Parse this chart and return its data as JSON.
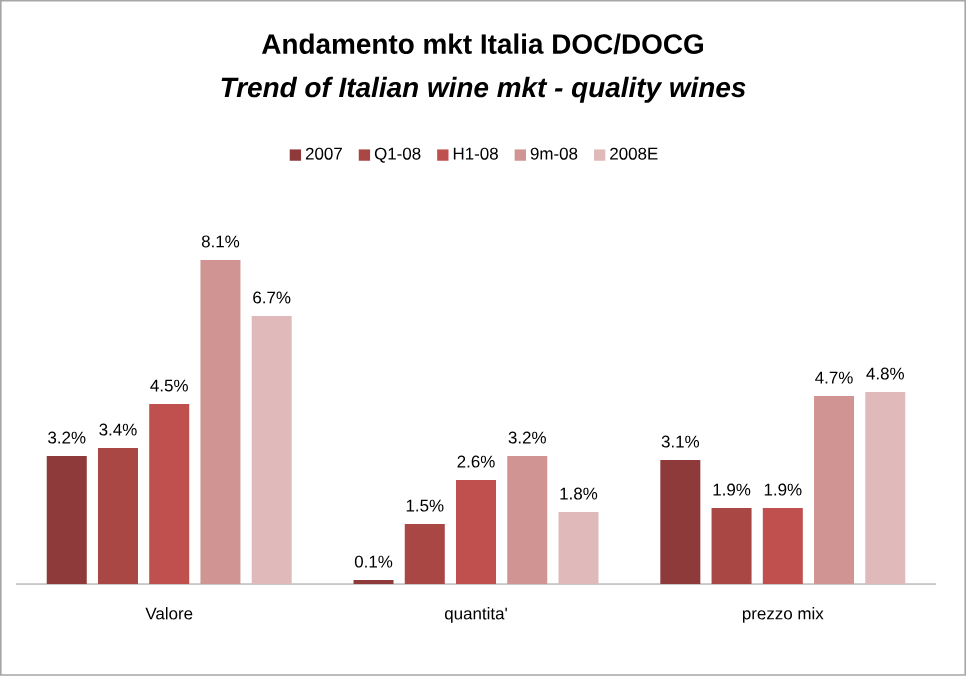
{
  "chart_data": {
    "type": "bar",
    "title": "Andamento mkt Italia  DOC/DOCG",
    "subtitle": "Trend of Italian wine mkt - quality wines",
    "categories": [
      "Valore",
      "quantita'",
      "prezzo mix"
    ],
    "series": [
      {
        "name": "2007",
        "color": "#8e3a3a",
        "values": [
          3.2,
          0.1,
          3.1
        ],
        "value_labels": [
          "3.2%",
          "0.1%",
          "3.1%"
        ]
      },
      {
        "name": "Q1-08",
        "color": "#a94745",
        "values": [
          3.4,
          1.5,
          1.9
        ],
        "value_labels": [
          "3.4%",
          "1.5%",
          "1.9%"
        ]
      },
      {
        "name": "H1-08",
        "color": "#c0504d",
        "values": [
          4.5,
          2.6,
          1.9
        ],
        "value_labels": [
          "4.5%",
          "2.6%",
          "1.9%"
        ]
      },
      {
        "name": "9m-08",
        "color": "#d09593",
        "values": [
          8.1,
          3.2,
          4.7
        ],
        "value_labels": [
          "8.1%",
          "3.2%",
          "4.7%"
        ]
      },
      {
        "name": "2008E",
        "color": "#e0baba",
        "values": [
          6.7,
          1.8,
          4.8
        ],
        "value_labels": [
          "6.7%",
          "1.8%",
          "4.8%"
        ]
      }
    ],
    "legend": "top"
  }
}
